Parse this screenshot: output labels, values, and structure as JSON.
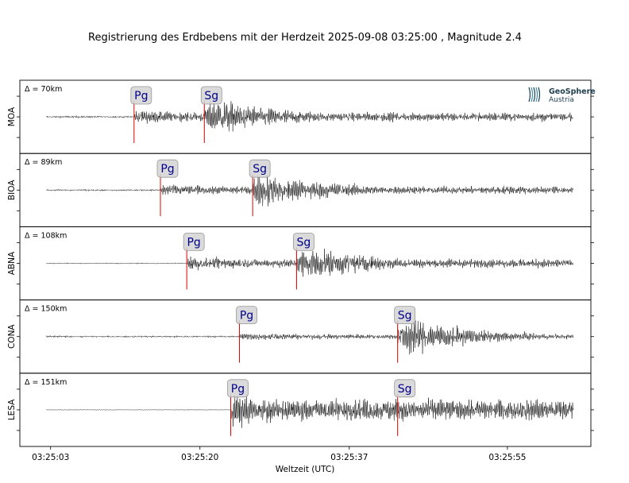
{
  "chart_data": {
    "type": "line",
    "title": "Registrierung des Erdbebens mit der Herdzeit 2025-09-08 03:25:00 , Magnitude 2.4",
    "xlabel": "Weltzeit (UTC)",
    "x_range_seconds_after_origin": [
      -0.5,
      64.5
    ],
    "x_ticks": [
      {
        "t": 3,
        "label": "03:25:03"
      },
      {
        "t": 20,
        "label": "03:25:20"
      },
      {
        "t": 37,
        "label": "03:25:37"
      },
      {
        "t": 55,
        "label": "03:25:55"
      }
    ],
    "trace_span_seconds": [
      2.5,
      62.5
    ],
    "logo": {
      "line1": "GeoSphere",
      "line2": "Austria"
    },
    "stations": [
      {
        "name": "MOA",
        "distance": "Δ = 70km",
        "p_time": 12.5,
        "s_time": 20.5,
        "p_label": "Pg",
        "s_label": "Sg",
        "noise": 0.03,
        "p_amp": 0.22,
        "s_amp": 0.55
      },
      {
        "name": "BIOA",
        "distance": "Δ = 89km",
        "p_time": 15.5,
        "s_time": 26.0,
        "p_label": "Pg",
        "s_label": "Sg",
        "noise": 0.025,
        "p_amp": 0.2,
        "s_amp": 0.55
      },
      {
        "name": "ABNA",
        "distance": "Δ = 108km",
        "p_time": 18.5,
        "s_time": 31.0,
        "p_label": "Pg",
        "s_label": "Sg",
        "noise": 0.015,
        "p_amp": 0.22,
        "s_amp": 0.55
      },
      {
        "name": "CONA",
        "distance": "Δ = 150km",
        "p_time": 24.5,
        "s_time": 42.5,
        "p_label": "Pg",
        "s_label": "Sg",
        "noise": 0.025,
        "p_amp": 0.12,
        "s_amp": 0.55
      },
      {
        "name": "LESA",
        "distance": "Δ = 151km",
        "p_time": 23.5,
        "s_time": 42.5,
        "p_label": "Pg",
        "s_label": "Sg",
        "noise": 0.01,
        "p_amp": 0.55,
        "s_amp": 0.16
      }
    ],
    "colors": {
      "trace": "#000000",
      "pick_line": "#e00000",
      "pick_box": "#d3d3d3",
      "pick_text": "#00008b"
    }
  }
}
